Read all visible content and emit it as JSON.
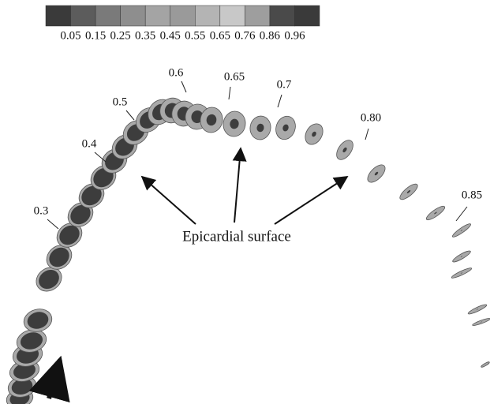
{
  "colorbar": {
    "labels": [
      "0.05",
      "0.15",
      "0.25",
      "0.35",
      "0.45",
      "0.55",
      "0.65",
      "0.76",
      "0.86",
      "0.96"
    ]
  },
  "slice_labels": [
    "0.3",
    "0.4",
    "0.5",
    "0.6",
    "0.65",
    "0.7",
    "0.80",
    "0.85"
  ],
  "annotation": "Epicardial surface"
}
